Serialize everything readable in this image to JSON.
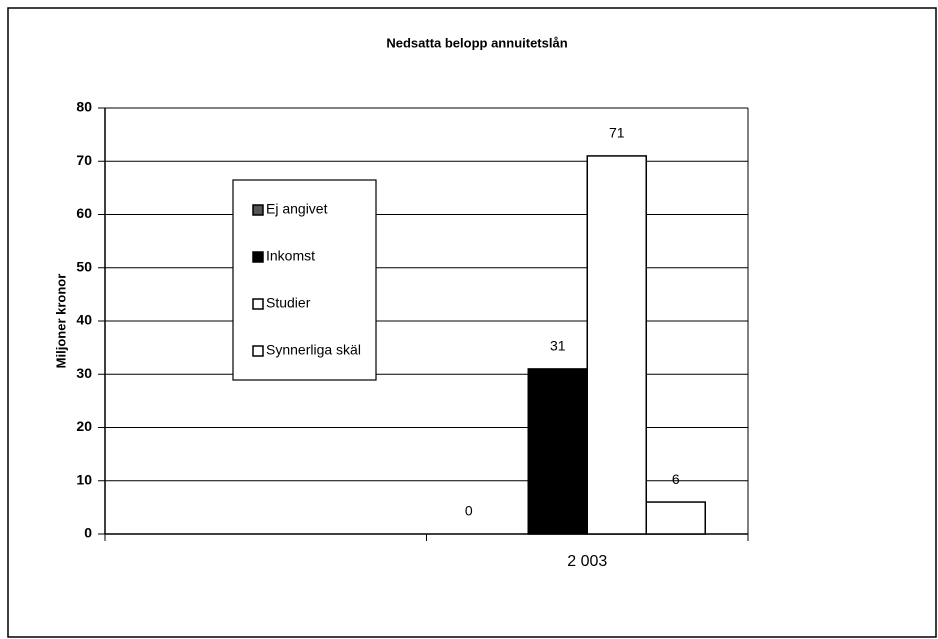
{
  "chart_data": {
    "type": "bar",
    "title": "Nedsatta belopp annuitetslån",
    "y_label": "Miljoner kronor",
    "categories": [
      null,
      "2 003"
    ],
    "series": [
      {
        "name": "Ej angivet",
        "color": "#555555",
        "values": [
          null,
          0
        ]
      },
      {
        "name": "Inkomst",
        "color": "#000000",
        "values": [
          null,
          31
        ]
      },
      {
        "name": "Studier",
        "color": "#ffffff",
        "values": [
          null,
          71
        ]
      },
      {
        "name": "Synnerliga skäl",
        "color": "#ffffff",
        "values": [
          null,
          6
        ]
      }
    ],
    "ylim": [
      0,
      80
    ],
    "yticks": [
      0,
      10,
      20,
      30,
      40,
      50,
      60,
      70,
      80
    ],
    "grid": true,
    "legend_position": "left",
    "data_labels": true
  }
}
